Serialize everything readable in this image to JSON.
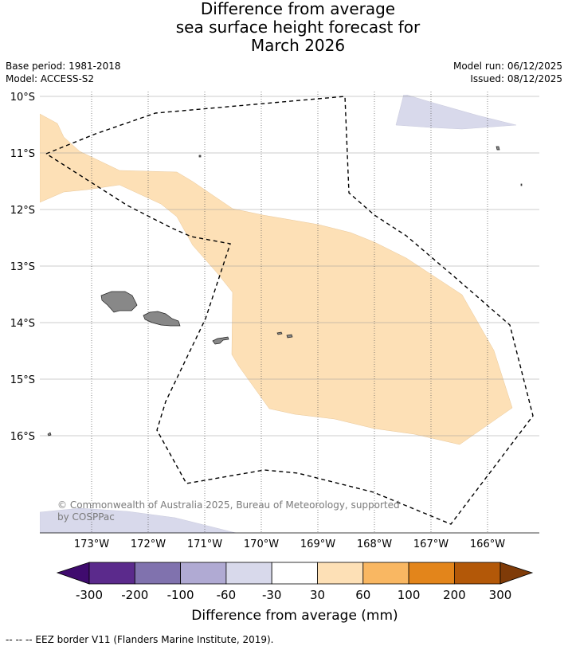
{
  "title": {
    "line1": "Difference from average",
    "line2": "sea surface height forecast for",
    "line3": "March 2026"
  },
  "meta": {
    "base_period": "Base period: 1981-2018",
    "model": "Model: ACCESS-S2",
    "model_run": "Model run: 06/12/2025",
    "issued": "Issued: 08/12/2025"
  },
  "map": {
    "lat_labels": [
      "10°S",
      "11°S",
      "12°S",
      "13°S",
      "14°S",
      "15°S",
      "16°S"
    ],
    "lon_labels": [
      "173°W",
      "172°W",
      "171°W",
      "170°W",
      "169°W",
      "168°W",
      "167°W",
      "166°W"
    ],
    "copyright_line1": "© Commonwealth of Australia 2025, Bureau of Meteorology, supported",
    "copyright_line2": "by COSPPac",
    "colors": {
      "land": "#888888",
      "anomaly_positive_30_60": "#fde0b6",
      "anomaly_negative_60_30": "#d8d9eb",
      "eez_border": "#000000",
      "gridline": "#999999"
    }
  },
  "colorbar": {
    "ticks": [
      "-300",
      "-200",
      "-100",
      "-60",
      "-30",
      "30",
      "60",
      "100",
      "200",
      "300"
    ],
    "colors": [
      "#3f0b6e",
      "#5b2a8c",
      "#8072ae",
      "#b0aad3",
      "#d8d9eb",
      "#ffffff",
      "#fde0b6",
      "#f9b762",
      "#e3851b",
      "#b35808",
      "#7f3b08"
    ],
    "label": "Difference from average (mm)"
  },
  "footer": {
    "legend": "--  --  -- EEZ border V11 (Flanders Marine Institute, 2019)."
  }
}
